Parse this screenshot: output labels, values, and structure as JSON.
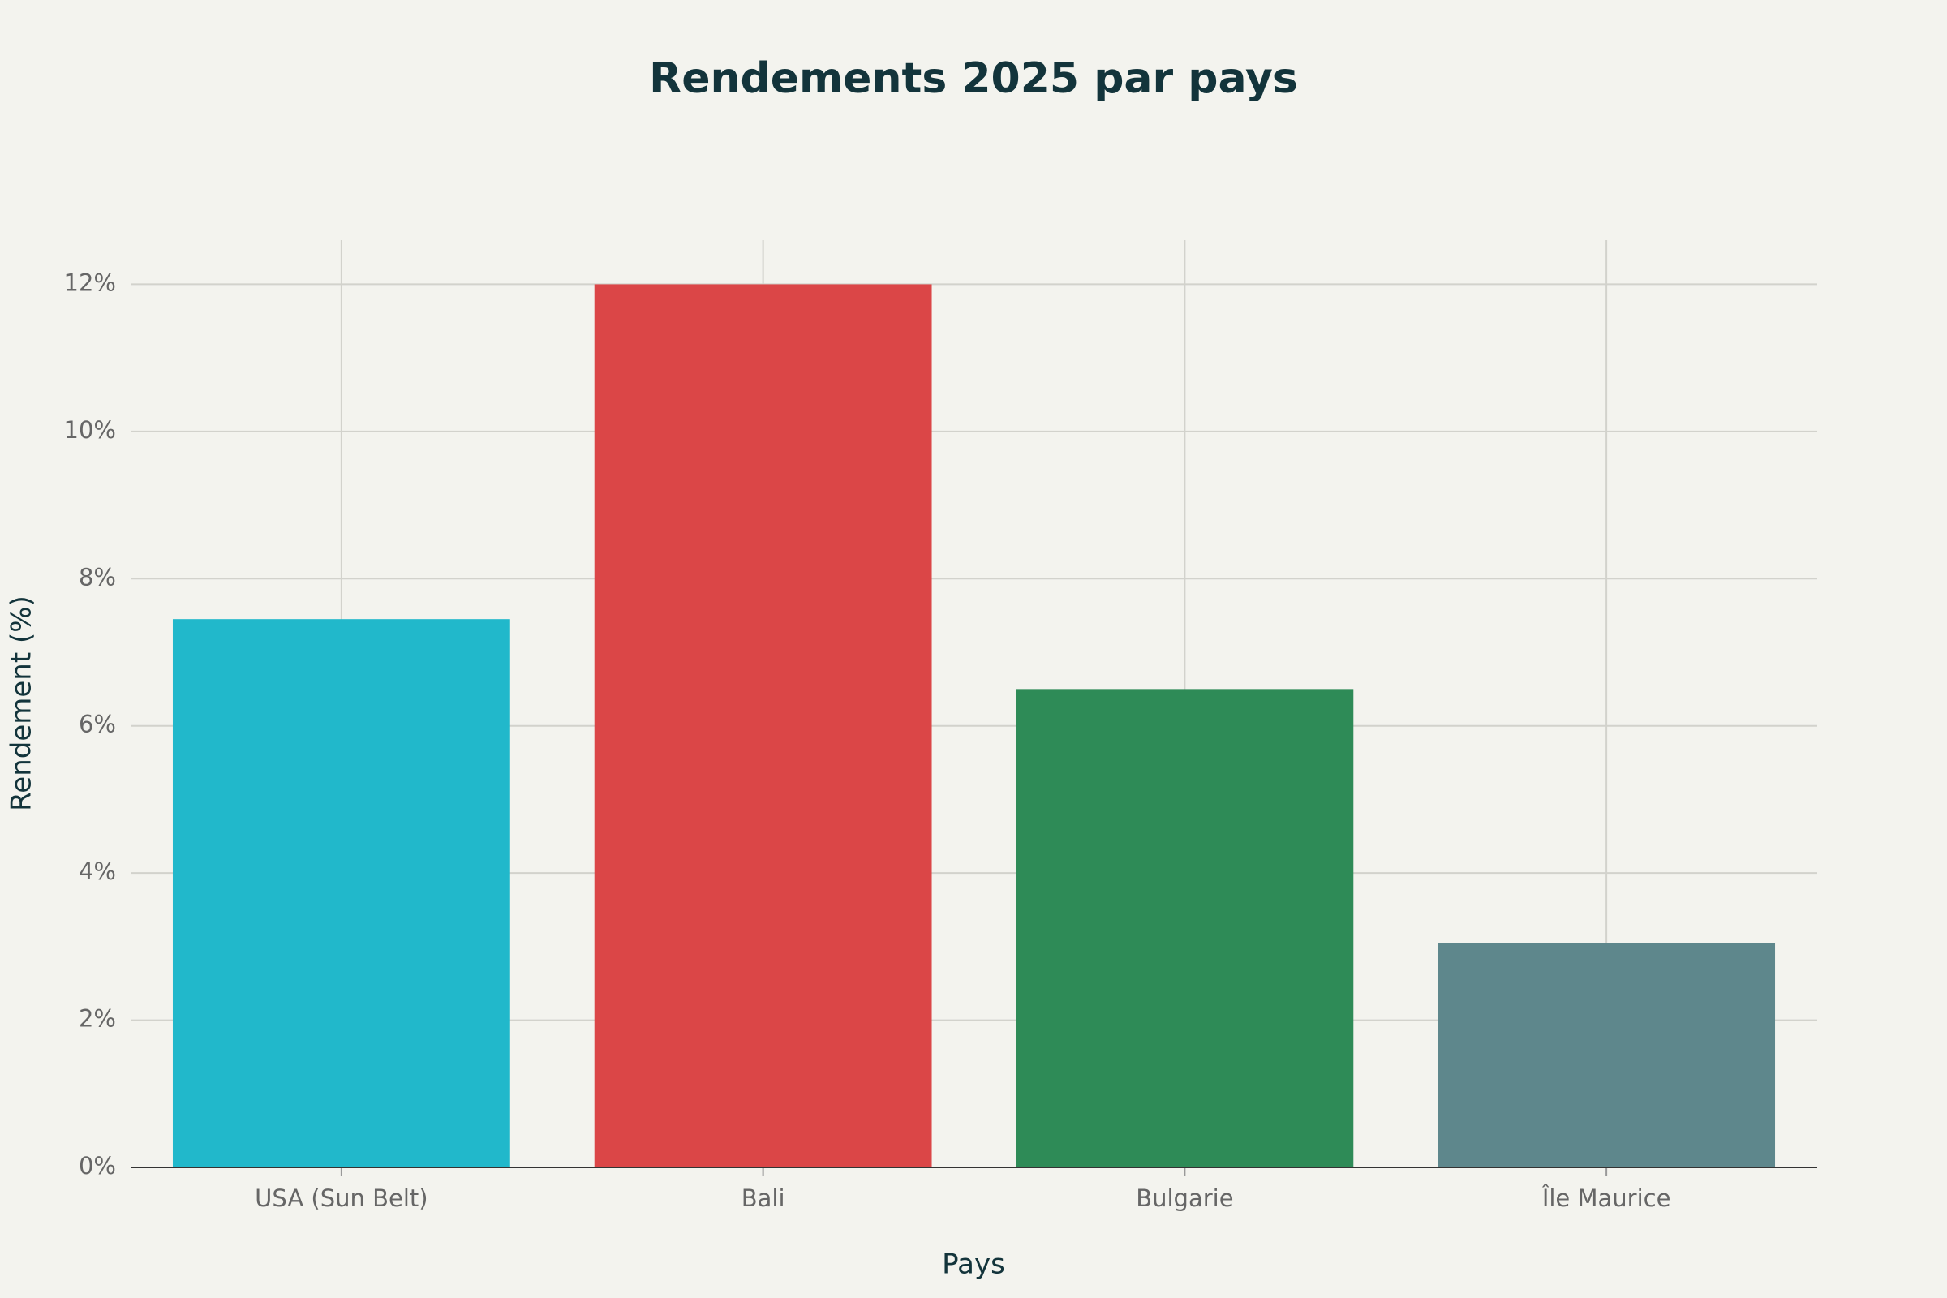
{
  "chart_data": {
    "type": "bar",
    "title": "Rendements 2025 par pays",
    "x_label": "Pays",
    "y_label": "Rendement (%)",
    "categories": [
      "USA (Sun Belt)",
      "Bali",
      "Bulgarie",
      "Île Maurice"
    ],
    "values": [
      7.45,
      12,
      6.5,
      3.05
    ],
    "colors": [
      "#21b8cb",
      "#db4647",
      "#2e8b57",
      "#5e878c"
    ],
    "ylim": [
      0,
      12.6
    ],
    "yticks": [
      {
        "value": 0,
        "label": "0%"
      },
      {
        "value": 2,
        "label": "2%"
      },
      {
        "value": 4,
        "label": "4%"
      },
      {
        "value": 6,
        "label": "6%"
      },
      {
        "value": 8,
        "label": "8%"
      },
      {
        "value": 10,
        "label": "10%"
      },
      {
        "value": 12,
        "label": "12%"
      }
    ],
    "grid": true
  }
}
